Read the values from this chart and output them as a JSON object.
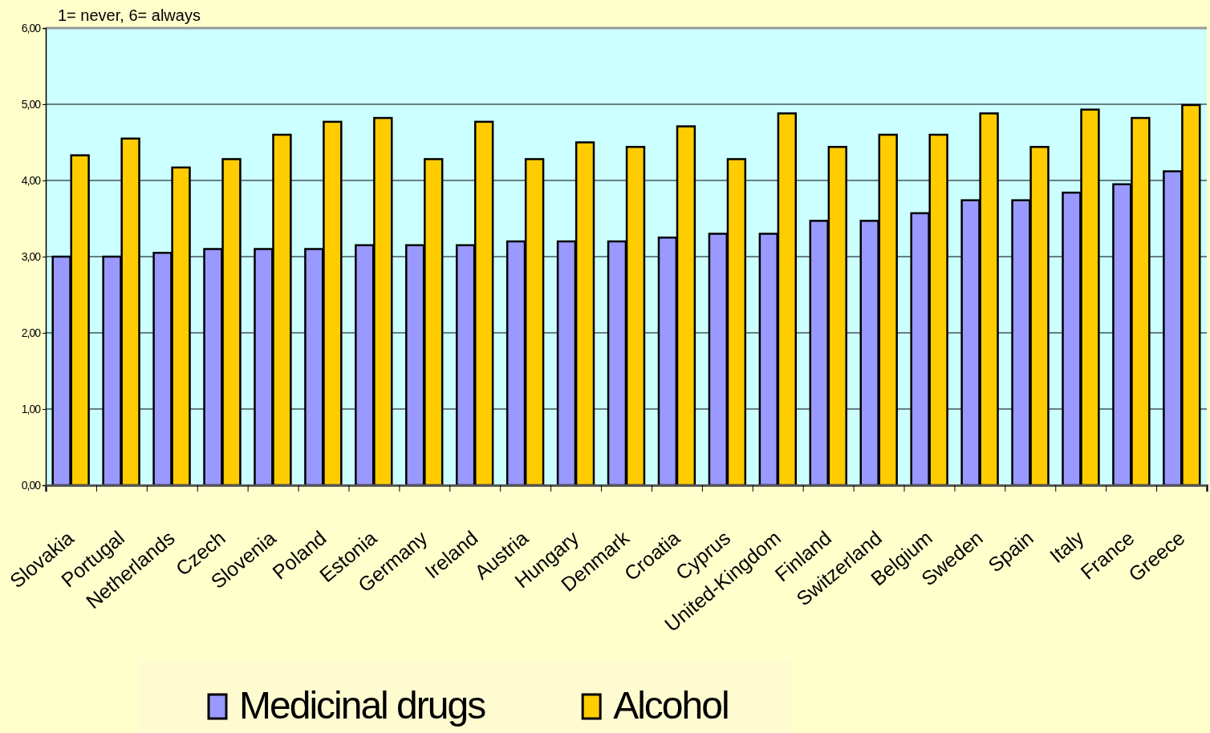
{
  "chart_data": {
    "type": "bar",
    "categories": [
      "Slovakia",
      "Portugal",
      "Netherlands",
      "Czech",
      "Slovenia",
      "Poland",
      "Estonia",
      "Germany",
      "Ireland",
      "Austria",
      "Hungary",
      "Denmark",
      "Croatia",
      "Cyprus",
      "United-Kingdom",
      "Finland",
      "Switzerland",
      "Belgium",
      "Sweden",
      "Spain",
      "Italy",
      "France",
      "Greece"
    ],
    "series": [
      {
        "name": "Medicinal drugs",
        "color": "#9999ff",
        "values": [
          3.0,
          3.0,
          3.05,
          3.1,
          3.1,
          3.1,
          3.15,
          3.15,
          3.15,
          3.2,
          3.2,
          3.2,
          3.25,
          3.3,
          3.3,
          3.47,
          3.47,
          3.57,
          3.74,
          3.74,
          3.84,
          3.95,
          4.12
        ]
      },
      {
        "name": "Alcohol",
        "color": "#ffcc00",
        "values": [
          4.33,
          4.55,
          4.17,
          4.28,
          4.6,
          4.77,
          4.82,
          4.28,
          4.77,
          4.28,
          4.5,
          4.44,
          4.71,
          4.28,
          4.88,
          4.44,
          4.6,
          4.6,
          4.88,
          4.44,
          4.93,
          4.82,
          4.99
        ]
      }
    ],
    "ylim": [
      0,
      6
    ],
    "yticks": [
      {
        "value": 0,
        "label": "0,00"
      },
      {
        "value": 1,
        "label": "1,00"
      },
      {
        "value": 2,
        "label": "2,00"
      },
      {
        "value": 3,
        "label": "3,00"
      },
      {
        "value": 4,
        "label": "4,00"
      },
      {
        "value": 5,
        "label": "5,00"
      },
      {
        "value": 6,
        "label": "6,00"
      }
    ],
    "grid": "y",
    "legend": "bottom",
    "annotations": [
      "1= never, 6= always"
    ]
  }
}
